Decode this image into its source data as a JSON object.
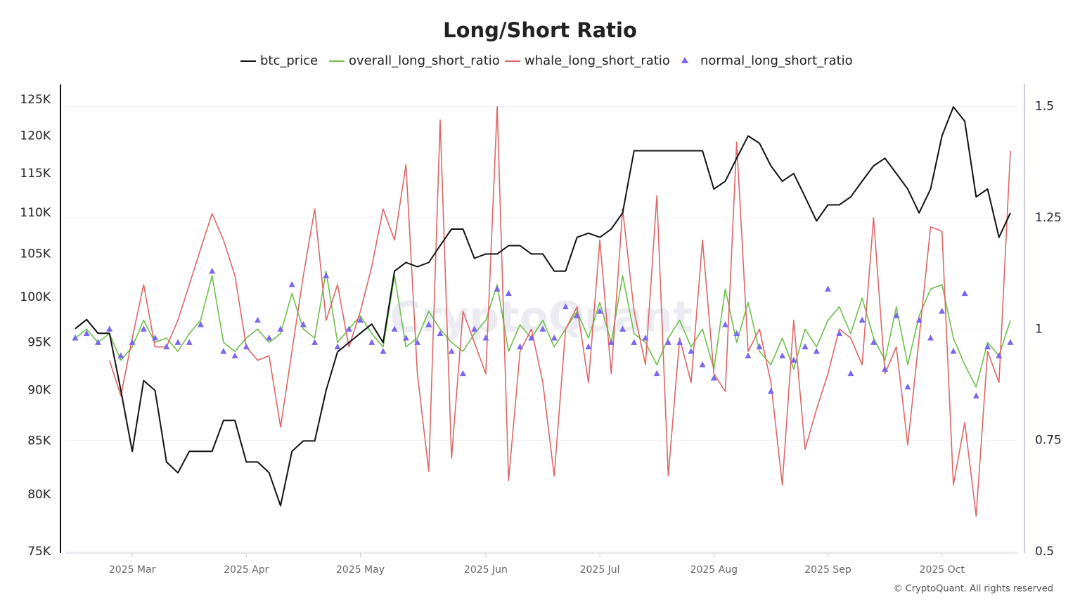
{
  "chart_data": {
    "type": "line",
    "title": "Long/Short Ratio",
    "watermark": "CryptoQuant",
    "footer": "© CryptoQuant. All rights reserved",
    "categories": [
      null,
      null,
      null,
      null,
      null,
      "2025 Mar",
      null,
      null,
      null,
      null,
      null,
      null,
      null,
      null,
      null,
      "2025 Apr",
      null,
      null,
      null,
      null,
      null,
      null,
      null,
      null,
      null,
      "2025 May",
      null,
      null,
      null,
      null,
      null,
      null,
      null,
      null,
      null,
      null,
      "2025 Jun",
      null,
      null,
      null,
      null,
      null,
      null,
      null,
      null,
      null,
      "2025 Jul",
      null,
      null,
      null,
      null,
      null,
      null,
      null,
      null,
      null,
      "2025 Aug",
      null,
      null,
      null,
      null,
      null,
      null,
      null,
      null,
      null,
      "2025 Sep",
      null,
      null,
      null,
      null,
      null,
      null,
      null,
      null,
      null,
      "2025 Oct",
      null,
      null,
      null,
      null,
      null,
      null
    ],
    "log_scale": true,
    "grid": true,
    "ylim": [
      75000,
      127200
    ],
    "yticks": [
      {
        "value": 75000,
        "label": "75K"
      },
      {
        "value": 80000,
        "label": "80K"
      },
      {
        "value": 85000,
        "label": "85K"
      },
      {
        "value": 90000,
        "label": "90K"
      },
      {
        "value": 95000,
        "label": "95K"
      },
      {
        "value": 100000,
        "label": "100K"
      },
      {
        "value": 105000,
        "label": "105K"
      },
      {
        "value": 110000,
        "label": "110K"
      },
      {
        "value": 115000,
        "label": "115K"
      },
      {
        "value": 120000,
        "label": "120K"
      },
      {
        "value": 125000,
        "label": "125K"
      }
    ],
    "y2lim": [
      0.5,
      1.55
    ],
    "y2ticks": [
      0.5,
      0.75,
      1,
      1.25,
      1.5
    ],
    "series": [
      {
        "name": "btc_price",
        "color": "#111111",
        "marker": "none",
        "values": [
          96500,
          97500,
          96000,
          96000,
          90000,
          84000,
          91000,
          90000,
          83000,
          82000,
          84000,
          84000,
          84000,
          87000,
          87000,
          83000,
          83000,
          82000,
          79000,
          84000,
          85000,
          85000,
          90000,
          94000,
          95000,
          96000,
          97000,
          95000,
          103000,
          104000,
          103500,
          104000,
          106000,
          108000,
          108000,
          104500,
          105000,
          105000,
          106000,
          106000,
          105000,
          105000,
          103000,
          103000,
          107000,
          107500,
          107000,
          108000,
          110000,
          118000,
          118000,
          118000,
          118000,
          118000,
          118000,
          118000,
          113000,
          114000,
          117000,
          120000,
          119000,
          116000,
          114000,
          115000,
          112000,
          109000,
          111000,
          111000,
          112000,
          114000,
          116000,
          117000,
          115000,
          113000,
          110000,
          113000,
          120000,
          124000,
          122000,
          112000,
          113000,
          107000,
          110000
        ]
      },
      {
        "name": "overall_long_short_ratio",
        "color": "#6cc24a",
        "axis": "y2",
        "marker": "none",
        "values": [
          0.98,
          1.0,
          0.97,
          0.99,
          0.93,
          0.96,
          1.02,
          0.97,
          0.98,
          0.95,
          0.99,
          1.02,
          1.12,
          0.97,
          0.95,
          0.98,
          1.0,
          0.97,
          0.99,
          1.08,
          1.0,
          0.98,
          1.13,
          0.97,
          1.0,
          1.03,
          0.99,
          0.96,
          1.12,
          0.96,
          0.98,
          1.04,
          1.0,
          0.97,
          0.95,
          0.99,
          1.02,
          1.1,
          0.95,
          1.01,
          0.98,
          1.02,
          0.96,
          1.0,
          1.04,
          0.98,
          1.06,
          0.97,
          1.12,
          0.99,
          0.97,
          0.92,
          0.98,
          1.02,
          0.96,
          1.0,
          0.91,
          1.09,
          0.97,
          1.06,
          0.95,
          0.92,
          0.98,
          0.91,
          1.0,
          0.96,
          1.02,
          1.05,
          0.99,
          1.07,
          0.98,
          0.93,
          1.05,
          0.92,
          1.03,
          1.09,
          1.1,
          0.98,
          0.92,
          0.87,
          0.97,
          0.94,
          1.02
        ]
      },
      {
        "name": "whale_long_short_ratio",
        "color": "#e06666",
        "axis": "y2",
        "marker": "none",
        "values": [
          null,
          null,
          null,
          0.93,
          0.85,
          0.98,
          1.1,
          0.96,
          0.96,
          1.02,
          1.1,
          1.18,
          1.26,
          1.2,
          1.12,
          0.96,
          0.93,
          0.94,
          0.78,
          0.95,
          1.12,
          1.27,
          1.02,
          1.1,
          0.96,
          1.04,
          1.14,
          1.27,
          1.2,
          1.37,
          0.9,
          0.68,
          1.47,
          0.71,
          1.04,
          0.97,
          0.9,
          1.5,
          0.66,
          0.95,
          1.0,
          0.88,
          0.67,
          1.0,
          1.05,
          0.88,
          1.2,
          0.9,
          1.27,
          1.04,
          0.92,
          1.3,
          0.67,
          0.98,
          0.88,
          1.2,
          0.9,
          0.86,
          1.42,
          0.95,
          1.0,
          0.88,
          0.65,
          1.02,
          0.73,
          0.82,
          0.9,
          1.0,
          0.98,
          0.92,
          1.25,
          0.9,
          0.96,
          0.74,
          0.98,
          1.23,
          1.22,
          0.65,
          0.79,
          0.58,
          0.95,
          0.88,
          1.4
        ]
      },
      {
        "name": "normal_long_short_ratio",
        "color": "#7b68ee",
        "axis": "y2",
        "marker": "triangle",
        "values": [
          0.98,
          0.99,
          0.97,
          1.0,
          0.94,
          0.97,
          1.0,
          0.98,
          0.96,
          0.97,
          0.97,
          1.01,
          1.13,
          0.95,
          0.94,
          0.96,
          1.02,
          0.98,
          1.0,
          1.1,
          1.01,
          0.97,
          1.12,
          0.96,
          1.0,
          1.02,
          0.97,
          0.95,
          1.0,
          0.98,
          0.97,
          1.01,
          0.99,
          0.95,
          0.9,
          1.0,
          0.98,
          1.09,
          1.08,
          0.96,
          0.98,
          1.0,
          0.98,
          1.05,
          1.03,
          0.96,
          1.04,
          0.97,
          1.0,
          0.97,
          0.98,
          0.9,
          0.97,
          0.97,
          0.95,
          0.92,
          0.89,
          1.01,
          0.99,
          0.94,
          0.96,
          0.86,
          0.94,
          0.93,
          0.96,
          0.95,
          1.09,
          0.99,
          0.9,
          1.02,
          0.97,
          0.91,
          1.03,
          0.87,
          1.02,
          0.98,
          1.04,
          0.95,
          1.08,
          0.85,
          0.96,
          0.94,
          0.97
        ]
      }
    ]
  }
}
